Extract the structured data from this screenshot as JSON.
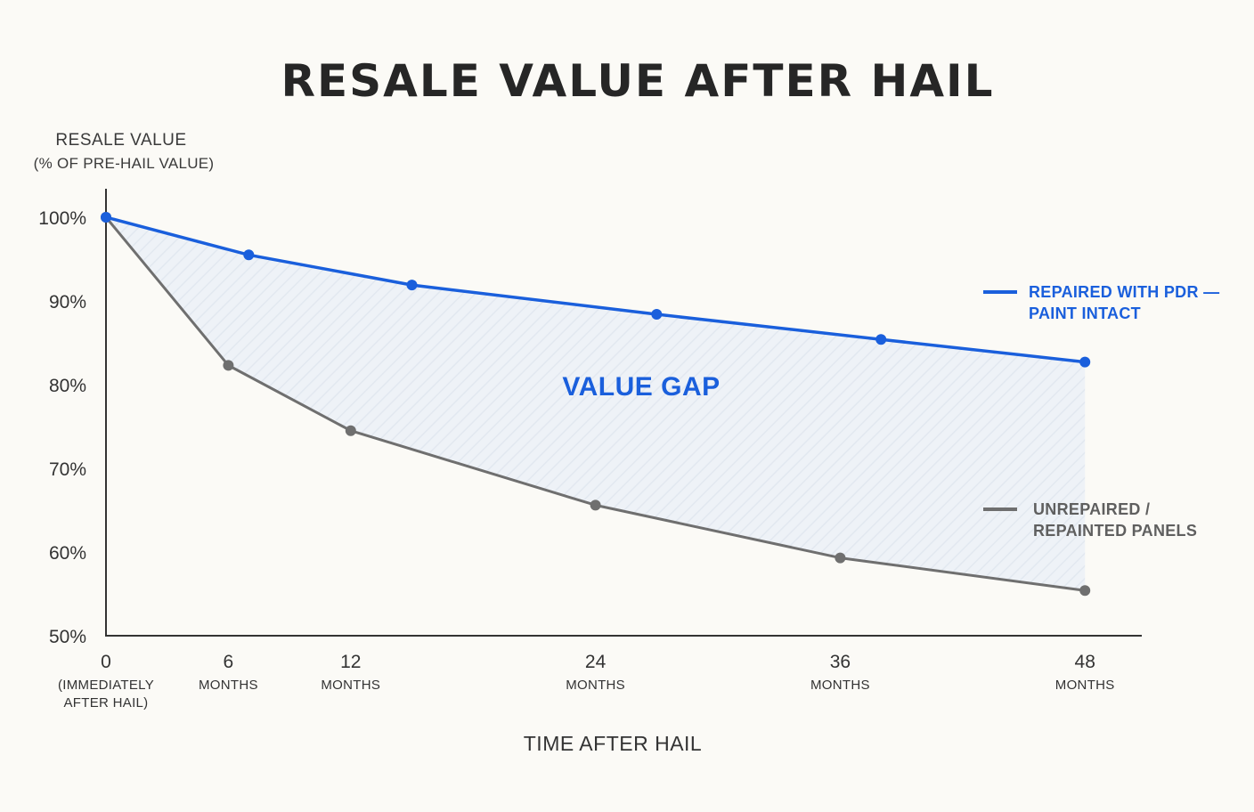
{
  "chart_data": {
    "type": "line",
    "title": "RESALE VALUE AFTER HAIL",
    "ylabel": [
      "RESALE VALUE",
      "(% OF PRE-HAIL VALUE)"
    ],
    "xlabel": "TIME AFTER HAIL",
    "ylim": [
      50,
      100
    ],
    "yticks": [
      "100%",
      "90%",
      "80%",
      "70%",
      "60%",
      "50%"
    ],
    "ytick_values": [
      100,
      90,
      80,
      70,
      60,
      50
    ],
    "xticks": [
      {
        "main": "0",
        "sub": [
          "(IMMEDIATELY",
          "AFTER HAIL)"
        ]
      },
      {
        "main": "6",
        "sub": [
          "MONTHS"
        ]
      },
      {
        "main": "12",
        "sub": [
          "MONTHS"
        ]
      },
      {
        "main": "24",
        "sub": [
          "MONTHS"
        ]
      },
      {
        "main": "36",
        "sub": [
          "MONTHS"
        ]
      },
      {
        "main": "48",
        "sub": [
          "MONTHS"
        ]
      }
    ],
    "series": [
      {
        "name": [
          "REPAIRED WITH PDR —",
          "PAINT INTACT"
        ],
        "color": "#1a5fdc",
        "points": [
          [
            0,
            100
          ],
          [
            7,
            95.5
          ],
          [
            15,
            91.9
          ],
          [
            27,
            88.4
          ],
          [
            38,
            85.4
          ],
          [
            48,
            82.7
          ]
        ]
      },
      {
        "name": [
          "UNREPAIRED /",
          "REPAINTED PANELS"
        ],
        "color": "#6f6f6f",
        "points": [
          [
            0,
            100
          ],
          [
            6,
            82.3
          ],
          [
            12,
            74.5
          ],
          [
            24,
            65.6
          ],
          [
            36,
            59.3
          ],
          [
            48,
            55.4
          ]
        ]
      }
    ],
    "annotation": "VALUE GAP",
    "annotation_color": "#1a5fdc",
    "grid": false,
    "legend_placement": "right"
  }
}
